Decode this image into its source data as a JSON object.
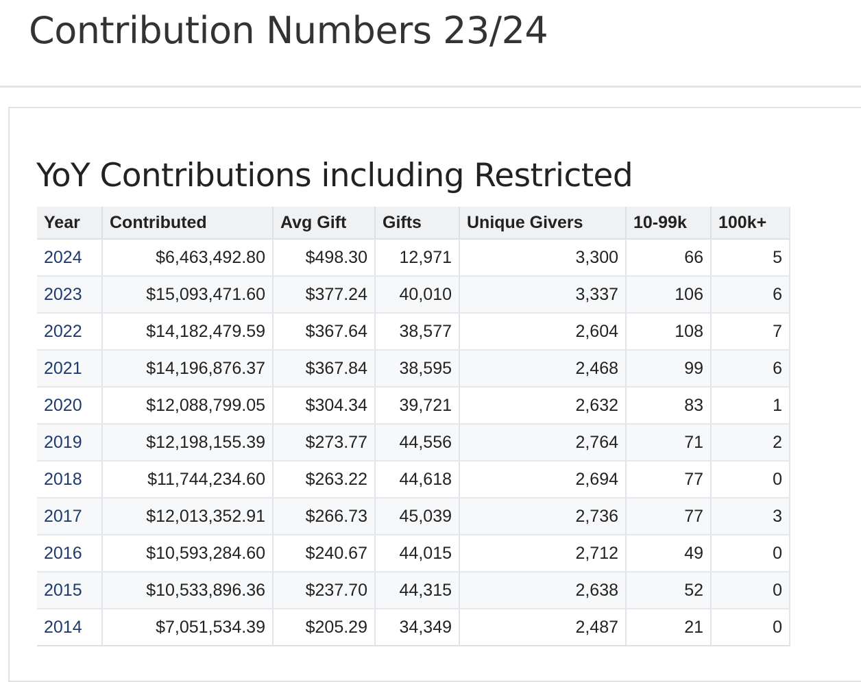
{
  "page": {
    "title": "Contribution Numbers 23/24"
  },
  "section": {
    "title": "YoY Contributions including Restricted"
  },
  "table": {
    "columns": [
      "Year",
      "Contributed",
      "Avg Gift",
      "Gifts",
      "Unique Givers",
      "10-99k",
      "100k+"
    ],
    "rows": [
      {
        "year": "2024",
        "contributed": "$6,463,492.80",
        "avg_gift": "$498.30",
        "gifts": "12,971",
        "unique_givers": "3,300",
        "mid": "66",
        "big": "5"
      },
      {
        "year": "2023",
        "contributed": "$15,093,471.60",
        "avg_gift": "$377.24",
        "gifts": "40,010",
        "unique_givers": "3,337",
        "mid": "106",
        "big": "6"
      },
      {
        "year": "2022",
        "contributed": "$14,182,479.59",
        "avg_gift": "$367.64",
        "gifts": "38,577",
        "unique_givers": "2,604",
        "mid": "108",
        "big": "7"
      },
      {
        "year": "2021",
        "contributed": "$14,196,876.37",
        "avg_gift": "$367.84",
        "gifts": "38,595",
        "unique_givers": "2,468",
        "mid": "99",
        "big": "6"
      },
      {
        "year": "2020",
        "contributed": "$12,088,799.05",
        "avg_gift": "$304.34",
        "gifts": "39,721",
        "unique_givers": "2,632",
        "mid": "83",
        "big": "1"
      },
      {
        "year": "2019",
        "contributed": "$12,198,155.39",
        "avg_gift": "$273.77",
        "gifts": "44,556",
        "unique_givers": "2,764",
        "mid": "71",
        "big": "2"
      },
      {
        "year": "2018",
        "contributed": "$11,744,234.60",
        "avg_gift": "$263.22",
        "gifts": "44,618",
        "unique_givers": "2,694",
        "mid": "77",
        "big": "0"
      },
      {
        "year": "2017",
        "contributed": "$12,013,352.91",
        "avg_gift": "$266.73",
        "gifts": "45,039",
        "unique_givers": "2,736",
        "mid": "77",
        "big": "3"
      },
      {
        "year": "2016",
        "contributed": "$10,593,284.60",
        "avg_gift": "$240.67",
        "gifts": "44,015",
        "unique_givers": "2,712",
        "mid": "49",
        "big": "0"
      },
      {
        "year": "2015",
        "contributed": "$10,533,896.36",
        "avg_gift": "$237.70",
        "gifts": "44,315",
        "unique_givers": "2,638",
        "mid": "52",
        "big": "0"
      },
      {
        "year": "2014",
        "contributed": "$7,051,534.39",
        "avg_gift": "$205.29",
        "gifts": "34,349",
        "unique_givers": "2,487",
        "mid": "21",
        "big": "0"
      }
    ]
  },
  "colors": {
    "year_link": "#1e3a6e",
    "header_bg": "#f0f1f3",
    "alt_row_bg": "#f7f8fa"
  }
}
